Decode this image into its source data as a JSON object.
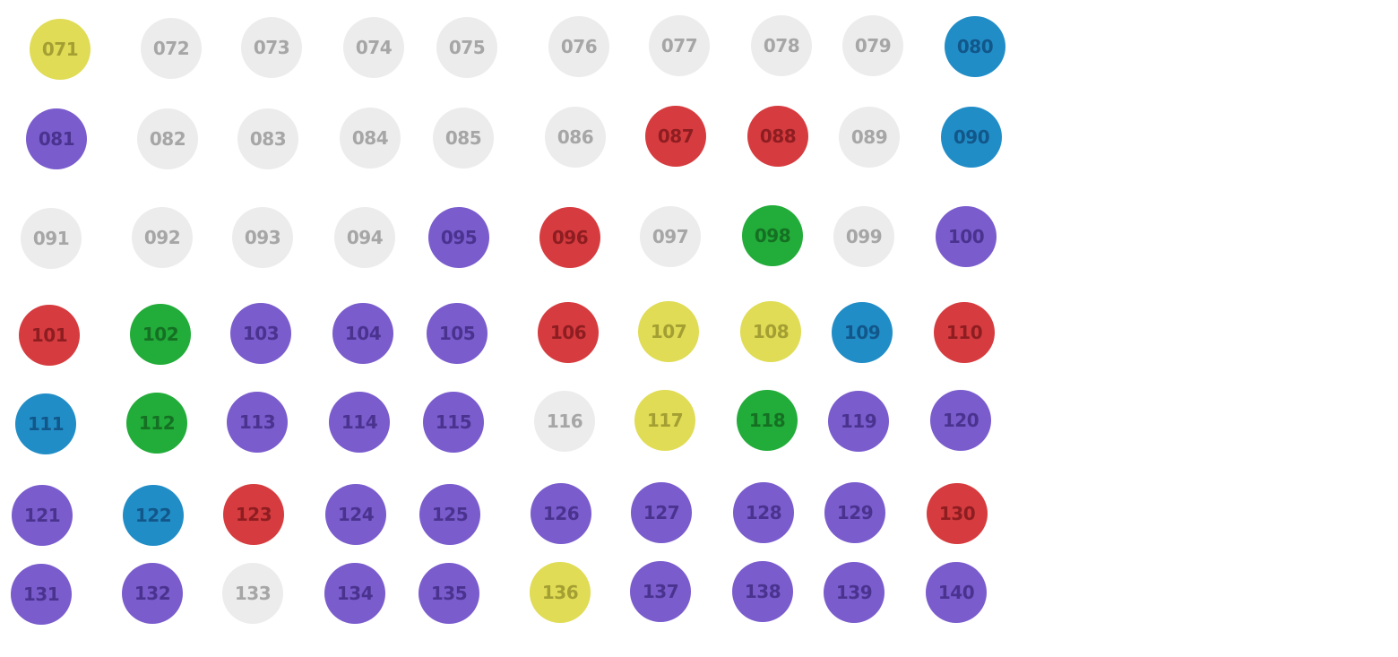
{
  "colors": {
    "grey": "#ececec",
    "yellow": "#e0dc55",
    "blue": "#218dc7",
    "purple": "#7a5ccd",
    "red": "#d63c3f",
    "green": "#22ac39"
  },
  "rows": [
    [
      {
        "label": "071",
        "color": "yellow"
      },
      {
        "label": "072",
        "color": "grey"
      },
      {
        "label": "073",
        "color": "grey"
      },
      {
        "label": "074",
        "color": "grey"
      },
      {
        "label": "075",
        "color": "grey"
      },
      {
        "label": "076",
        "color": "grey"
      },
      {
        "label": "077",
        "color": "grey"
      },
      {
        "label": "078",
        "color": "grey"
      },
      {
        "label": "079",
        "color": "grey"
      },
      {
        "label": "080",
        "color": "blue"
      }
    ],
    [
      {
        "label": "081",
        "color": "purple"
      },
      {
        "label": "082",
        "color": "grey"
      },
      {
        "label": "083",
        "color": "grey"
      },
      {
        "label": "084",
        "color": "grey"
      },
      {
        "label": "085",
        "color": "grey"
      },
      {
        "label": "086",
        "color": "grey"
      },
      {
        "label": "087",
        "color": "red"
      },
      {
        "label": "088",
        "color": "red"
      },
      {
        "label": "089",
        "color": "grey"
      },
      {
        "label": "090",
        "color": "blue"
      }
    ],
    [
      {
        "label": "091",
        "color": "grey"
      },
      {
        "label": "092",
        "color": "grey"
      },
      {
        "label": "093",
        "color": "grey"
      },
      {
        "label": "094",
        "color": "grey"
      },
      {
        "label": "095",
        "color": "purple"
      },
      {
        "label": "096",
        "color": "red"
      },
      {
        "label": "097",
        "color": "grey"
      },
      {
        "label": "098",
        "color": "green"
      },
      {
        "label": "099",
        "color": "grey"
      },
      {
        "label": "100",
        "color": "purple"
      }
    ],
    [
      {
        "label": "101",
        "color": "red"
      },
      {
        "label": "102",
        "color": "green"
      },
      {
        "label": "103",
        "color": "purple"
      },
      {
        "label": "104",
        "color": "purple"
      },
      {
        "label": "105",
        "color": "purple"
      },
      {
        "label": "106",
        "color": "red"
      },
      {
        "label": "107",
        "color": "yellow"
      },
      {
        "label": "108",
        "color": "yellow"
      },
      {
        "label": "109",
        "color": "blue"
      },
      {
        "label": "110",
        "color": "red"
      }
    ],
    [
      {
        "label": "111",
        "color": "blue"
      },
      {
        "label": "112",
        "color": "green"
      },
      {
        "label": "113",
        "color": "purple"
      },
      {
        "label": "114",
        "color": "purple"
      },
      {
        "label": "115",
        "color": "purple"
      },
      {
        "label": "116",
        "color": "grey"
      },
      {
        "label": "117",
        "color": "yellow"
      },
      {
        "label": "118",
        "color": "green"
      },
      {
        "label": "119",
        "color": "purple"
      },
      {
        "label": "120",
        "color": "purple"
      }
    ],
    [
      {
        "label": "121",
        "color": "purple"
      },
      {
        "label": "122",
        "color": "blue"
      },
      {
        "label": "123",
        "color": "red"
      },
      {
        "label": "124",
        "color": "purple"
      },
      {
        "label": "125",
        "color": "purple"
      },
      {
        "label": "126",
        "color": "purple"
      },
      {
        "label": "127",
        "color": "purple"
      },
      {
        "label": "128",
        "color": "purple"
      },
      {
        "label": "129",
        "color": "purple"
      },
      {
        "label": "130",
        "color": "red"
      }
    ],
    [
      {
        "label": "131",
        "color": "purple"
      },
      {
        "label": "132",
        "color": "purple"
      },
      {
        "label": "133",
        "color": "grey"
      },
      {
        "label": "134",
        "color": "purple"
      },
      {
        "label": "135",
        "color": "purple"
      },
      {
        "label": "136",
        "color": "yellow"
      },
      {
        "label": "137",
        "color": "purple"
      },
      {
        "label": "138",
        "color": "purple"
      },
      {
        "label": "139",
        "color": "purple"
      },
      {
        "label": "140",
        "color": "purple"
      }
    ]
  ]
}
